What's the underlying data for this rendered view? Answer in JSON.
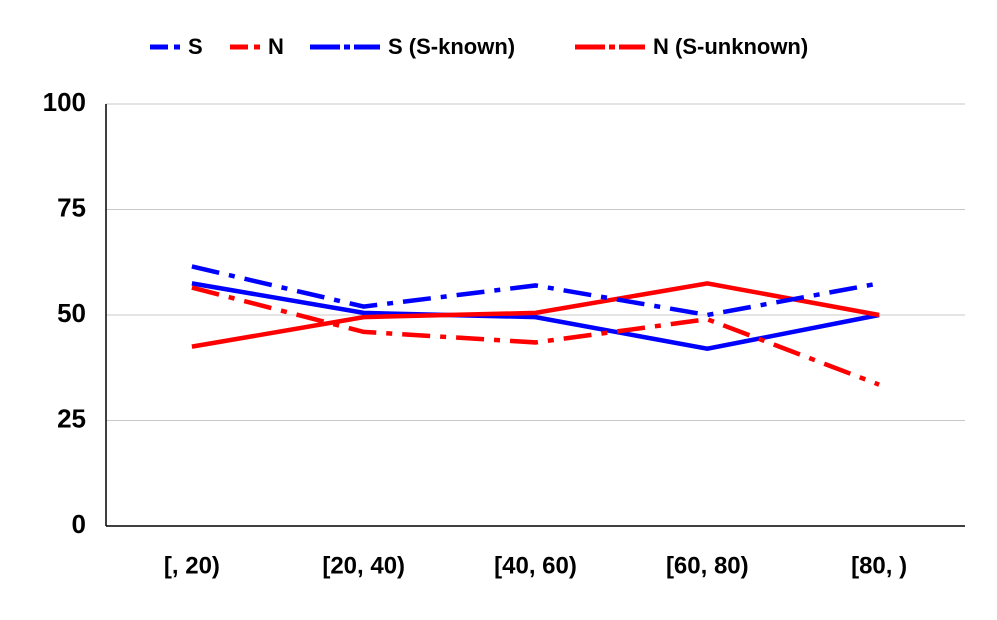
{
  "chart_data": {
    "type": "line",
    "categories": [
      "[, 20)",
      "[20, 40)",
      "[40, 60)",
      "[60, 80)",
      "[80, )"
    ],
    "series": [
      {
        "name": "S",
        "color": "#0000ff",
        "line_style": "solid",
        "values": [
          57.5,
          50.5,
          49.5,
          42,
          50
        ]
      },
      {
        "name": "N",
        "color": "#ff0000",
        "line_style": "solid",
        "values": [
          42.5,
          49.5,
          50.5,
          57.5,
          50
        ]
      },
      {
        "name": "S (S-known)",
        "color": "#0000ff",
        "line_style": "dashdot",
        "values": [
          61.5,
          52,
          57,
          50,
          57.5
        ]
      },
      {
        "name": "N (S-unknown)",
        "color": "#ff0000",
        "line_style": "dashdot",
        "values": [
          56.5,
          46,
          43.5,
          49,
          33.5
        ]
      }
    ],
    "ylim": [
      0,
      100
    ],
    "yticks": [
      0,
      25,
      50,
      75,
      100
    ],
    "grid": true,
    "legend": "top"
  }
}
